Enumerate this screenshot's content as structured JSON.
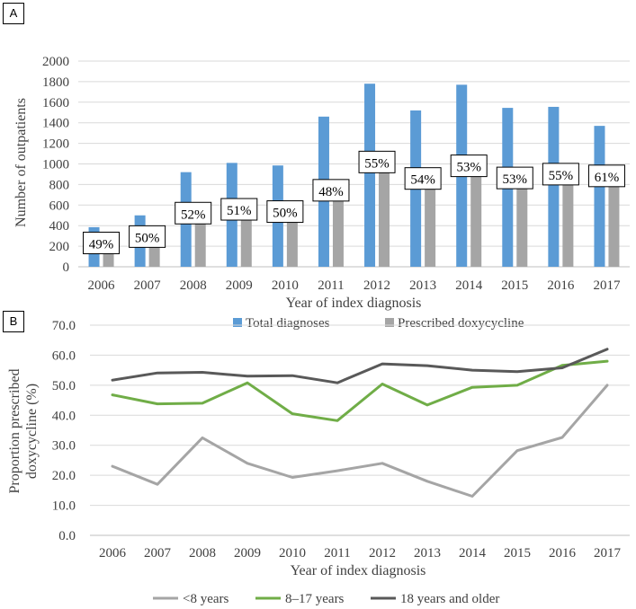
{
  "chart_data": [
    {
      "panel": "A",
      "type": "bar",
      "title": "",
      "xlabel": "Year of index diagnosis",
      "ylabel": "Number of outpatients",
      "ylim": [
        0,
        2000
      ],
      "yticks": [
        "0",
        "200",
        "400",
        "600",
        "800",
        "1000",
        "1200",
        "1400",
        "1600",
        "1800",
        "2000"
      ],
      "gridlines": true,
      "legend_position": "bottom",
      "categories": [
        "2006",
        "2007",
        "2008",
        "2009",
        "2010",
        "2011",
        "2012",
        "2013",
        "2014",
        "2015",
        "2016",
        "2017"
      ],
      "series": [
        {
          "name": "Total diagnoses",
          "color": "#5B9BD5",
          "values": [
            385,
            500,
            920,
            1010,
            985,
            1460,
            1780,
            1520,
            1770,
            1545,
            1555,
            1370
          ]
        },
        {
          "name": "Prescribed doxycycline",
          "color": "#A5A5A5",
          "values": [
            188,
            250,
            478,
            515,
            493,
            700,
            975,
            815,
            938,
            820,
            857,
            840
          ]
        }
      ],
      "annotations": [
        "49%",
        "50%",
        "52%",
        "51%",
        "50%",
        "48%",
        "55%",
        "54%",
        "53%",
        "53%",
        "55%",
        "61%"
      ]
    },
    {
      "panel": "B",
      "type": "line",
      "title": "",
      "xlabel": "Year of index diagnosis",
      "ylabel": "Proportion prescribed doxycycline (%)",
      "ylabel_lines": [
        "Proportion prescribed",
        "doxycycline (%)"
      ],
      "ylim": [
        0,
        70
      ],
      "yticks": [
        "0.0",
        "10.0",
        "20.0",
        "30.0",
        "40.0",
        "50.0",
        "60.0",
        "70.0"
      ],
      "gridlines": true,
      "legend_position": "bottom",
      "x": [
        "2006",
        "2007",
        "2008",
        "2009",
        "2010",
        "2011",
        "2012",
        "2013",
        "2014",
        "2015",
        "2016",
        "2017"
      ],
      "series": [
        {
          "name": "<8 years",
          "color": "#A5A5A5",
          "values": [
            23.0,
            17.0,
            32.5,
            24.0,
            19.3,
            21.5,
            24.0,
            18.0,
            13.0,
            28.2,
            32.6,
            50.0
          ]
        },
        {
          "name": "8–17 years",
          "color": "#70AD47",
          "values": [
            46.8,
            43.8,
            44.0,
            50.8,
            40.5,
            38.2,
            50.4,
            43.4,
            49.3,
            50.0,
            56.6,
            58.0
          ]
        },
        {
          "name": "18 years and older",
          "color": "#595959",
          "values": [
            51.7,
            54.1,
            54.3,
            53.0,
            53.2,
            50.8,
            57.1,
            56.5,
            55.0,
            54.5,
            55.8,
            62.0
          ]
        }
      ]
    }
  ]
}
